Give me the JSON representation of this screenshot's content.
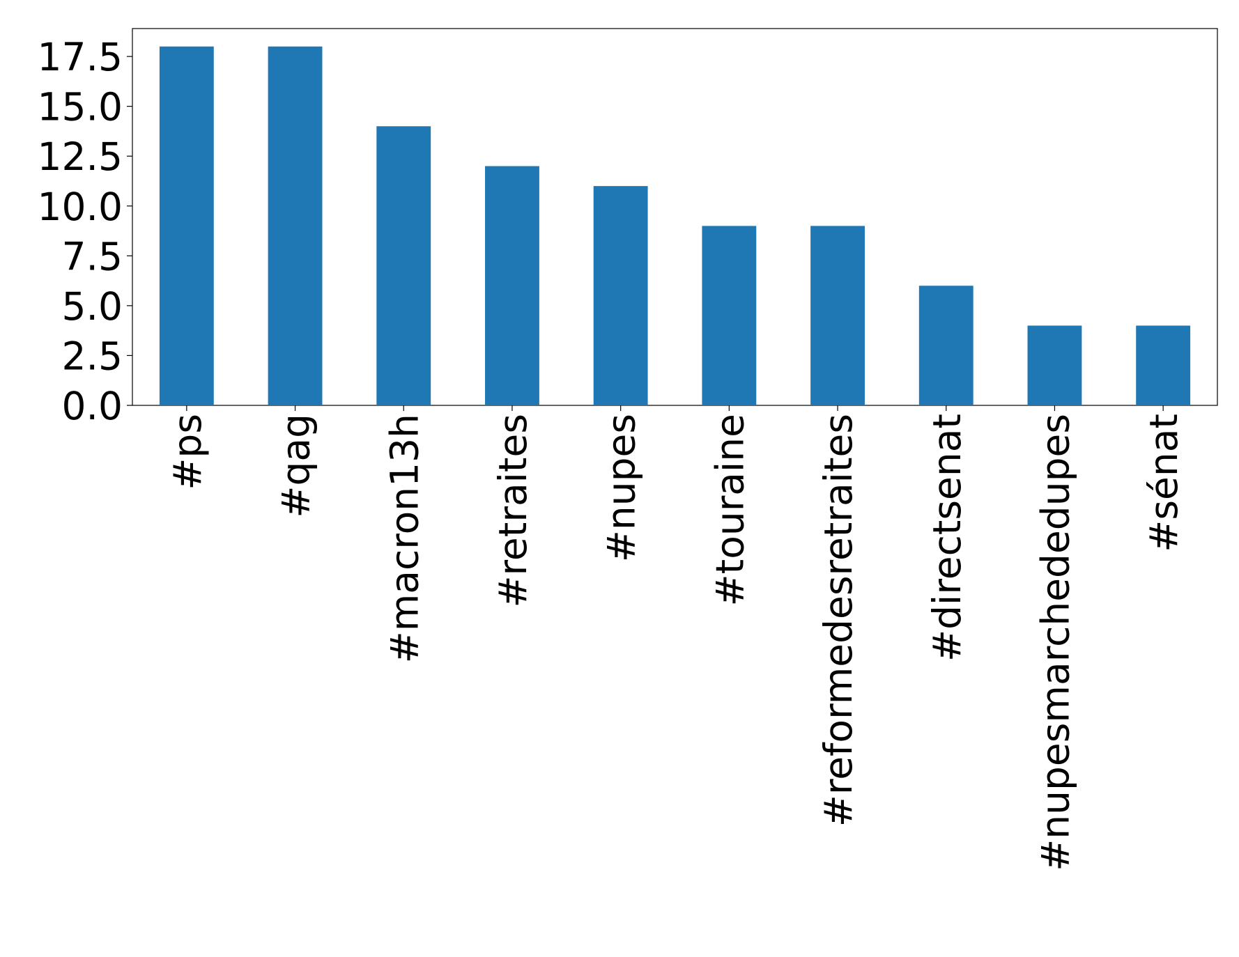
{
  "chart_data": {
    "type": "bar",
    "categories": [
      "#ps",
      "#qag",
      "#macron13h",
      "#retraites",
      "#nupes",
      "#touraine",
      "#reformedesretraites",
      "#directsenat",
      "#nupesmarchededupes",
      "#sénat"
    ],
    "values": [
      18,
      18,
      14,
      12,
      11,
      9,
      9,
      6,
      4,
      4
    ],
    "color": "#1f77b4",
    "ylim": [
      0,
      18.9
    ],
    "yticks": [
      {
        "value": 0,
        "label": "0.0"
      },
      2.5,
      {
        "value": 5,
        "label": "5.0"
      },
      7.5,
      {
        "value": 10,
        "label": "10.0"
      },
      12.5,
      {
        "value": 15,
        "label": "15.0"
      },
      17.5
    ],
    "grid": false
  }
}
